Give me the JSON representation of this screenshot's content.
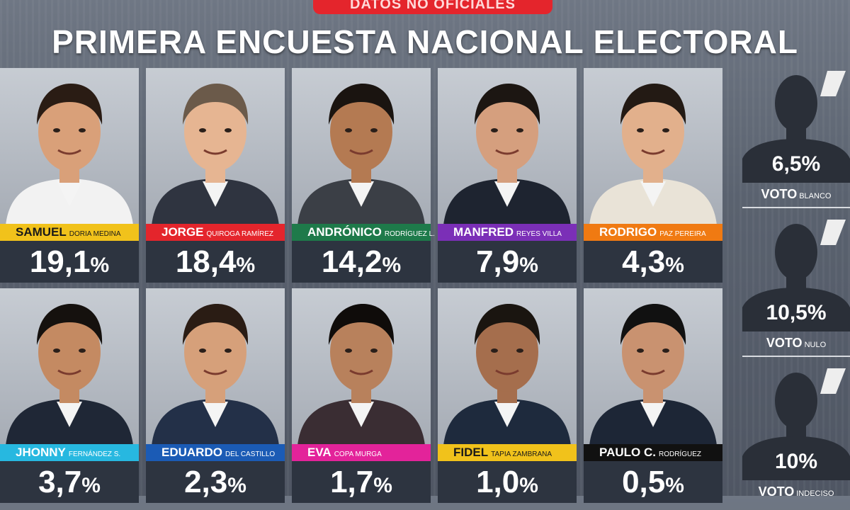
{
  "header": {
    "banner": "DATOS NO OFICIALES",
    "title": "PRIMERA ENCUESTA NACIONAL ELECTORAL"
  },
  "candidates": [
    {
      "first": "SAMUEL",
      "rest": "DORIA MEDINA",
      "value": "19,1",
      "color": "#f1c21b",
      "light": true
    },
    {
      "first": "JORGE",
      "rest": "QUIROGA RAMÍREZ",
      "value": "18,4",
      "color": "#e4252c",
      "light": false
    },
    {
      "first": "ANDRÓNICO",
      "rest": "RODRÍGUEZ L.",
      "value": "14,2",
      "color": "#1e7a4a",
      "light": false
    },
    {
      "first": "MANFRED",
      "rest": "REYES VILLA",
      "value": "7,9",
      "color": "#7b2fb7",
      "light": false
    },
    {
      "first": "RODRIGO",
      "rest": "PAZ PEREIRA",
      "value": "4,3",
      "color": "#f07a12",
      "light": false
    },
    {
      "first": "JHONNY",
      "rest": "FERNÁNDEZ S.",
      "value": "3,7",
      "color": "#27b8e0",
      "light": false
    },
    {
      "first": "EDUARDO",
      "rest": "DEL CASTILLO",
      "value": "2,3",
      "color": "#1b5bb5",
      "light": false
    },
    {
      "first": "EVA",
      "rest": "COPA MURGA",
      "value": "1,7",
      "color": "#e3239a",
      "light": false
    },
    {
      "first": "FIDEL",
      "rest": "TAPIA ZAMBRANA",
      "value": "1,0",
      "color": "#f1c21b",
      "light": true
    },
    {
      "first": "PAULO C.",
      "rest": "RODRÍGUEZ",
      "value": "0,5",
      "color": "#111111",
      "light": false
    }
  ],
  "side_votes": [
    {
      "value": "6,5",
      "label": "VOTO",
      "sub": "BLANCO"
    },
    {
      "value": "10,5",
      "label": "VOTO",
      "sub": "NULO"
    },
    {
      "value": "10",
      "label": "VOTO",
      "sub": "INDECISO"
    }
  ],
  "percent_sign": "%",
  "chart_data": {
    "type": "bar",
    "title": "PRIMERA ENCUESTA NACIONAL ELECTORAL",
    "categories": [
      "SAMUEL DORIA MEDINA",
      "JORGE QUIROGA RAMÍREZ",
      "ANDRÓNICO RODRÍGUEZ L.",
      "MANFRED REYES VILLA",
      "RODRIGO PAZ PEREIRA",
      "JHONNY FERNÁNDEZ S.",
      "EDUARDO DEL CASTILLO",
      "EVA COPA MURGA",
      "FIDEL TAPIA ZAMBRANA",
      "PAULO C. RODRÍGUEZ",
      "VOTO BLANCO",
      "VOTO NULO",
      "VOTO INDECISO"
    ],
    "values": [
      19.1,
      18.4,
      14.2,
      7.9,
      4.3,
      3.7,
      2.3,
      1.7,
      1.0,
      0.5,
      6.5,
      10.5,
      10
    ],
    "unit": "%"
  },
  "colors": {
    "card_dark": "#2d3440",
    "banner_red": "#e4252c"
  }
}
